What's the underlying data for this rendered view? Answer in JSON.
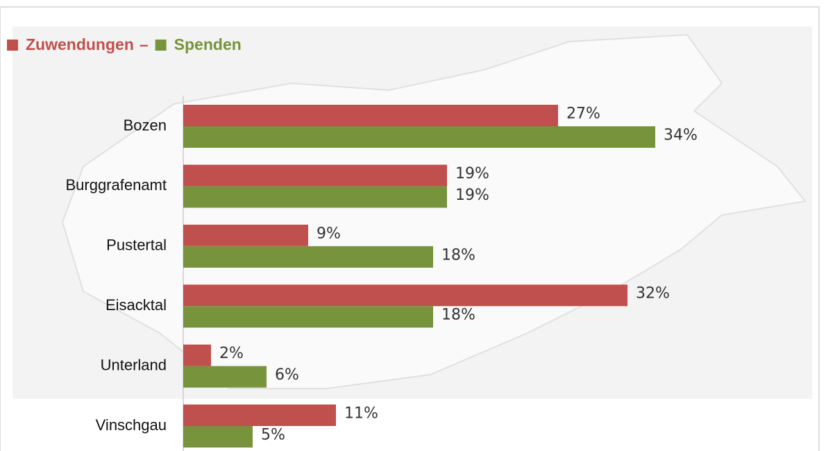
{
  "chart_data": {
    "type": "bar",
    "orientation": "horizontal",
    "legend_separator": "–",
    "categories": [
      "Bozen",
      "Burggrafenamt",
      "Pustertal",
      "Eisacktal",
      "Unterland",
      "Vinschgau"
    ],
    "series": [
      {
        "name": "Zuwendungen",
        "color": "#c0504d",
        "values": [
          27,
          19,
          9,
          32,
          2,
          11
        ],
        "value_labels": [
          "27%",
          "19%",
          "9%",
          "32%",
          "2%",
          "11%"
        ]
      },
      {
        "name": "Spenden",
        "color": "#77933c",
        "values": [
          34,
          19,
          18,
          18,
          6,
          5
        ],
        "value_labels": [
          "34%",
          "19%",
          "18%",
          "18%",
          "6%",
          "5%"
        ]
      }
    ],
    "xlim": [
      0,
      45
    ]
  }
}
